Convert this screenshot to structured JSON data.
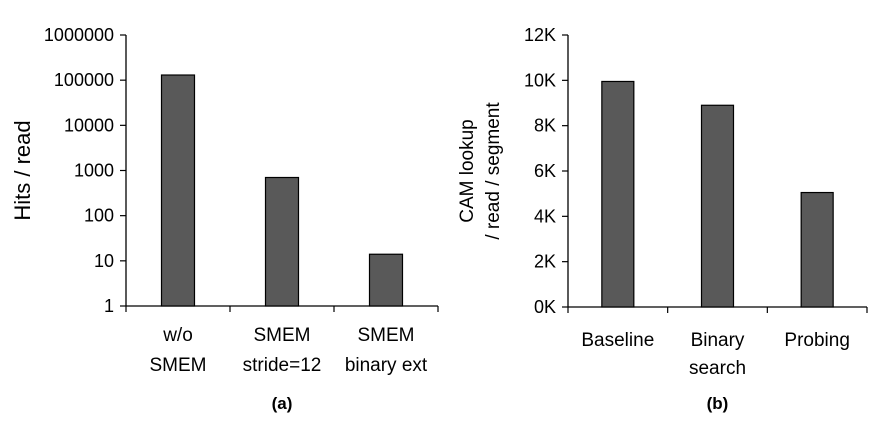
{
  "chart_data": [
    {
      "panel_label": "(a)",
      "type": "bar",
      "categories": [
        [
          "w/o",
          "SMEM"
        ],
        [
          "SMEM",
          "stride=12"
        ],
        [
          "SMEM",
          "binary ext"
        ]
      ],
      "values": [
        130000,
        700,
        14
      ],
      "ylabel": "Hits / read",
      "yscale": "log",
      "ylim": [
        1,
        1000000
      ],
      "yticks": [
        1,
        10,
        100,
        1000,
        10000,
        100000,
        1000000
      ],
      "ytick_labels": [
        "1",
        "10",
        "100",
        "1000",
        "10000",
        "100000",
        "1000000"
      ],
      "grid": false,
      "bar_color": "#595959"
    },
    {
      "panel_label": "(b)",
      "type": "bar",
      "categories": [
        [
          "Baseline"
        ],
        [
          "Binary",
          "search"
        ],
        [
          "Probing"
        ]
      ],
      "values": [
        9950,
        8900,
        5050
      ],
      "ylabel": [
        "CAM lookup",
        "/ read / segment"
      ],
      "yscale": "linear",
      "ylim": [
        0,
        12000
      ],
      "yticks": [
        0,
        2000,
        4000,
        6000,
        8000,
        10000,
        12000
      ],
      "ytick_labels": [
        "0K",
        "2K",
        "4K",
        "6K",
        "8K",
        "10K",
        "12K"
      ],
      "grid": false,
      "bar_color": "#595959"
    }
  ]
}
